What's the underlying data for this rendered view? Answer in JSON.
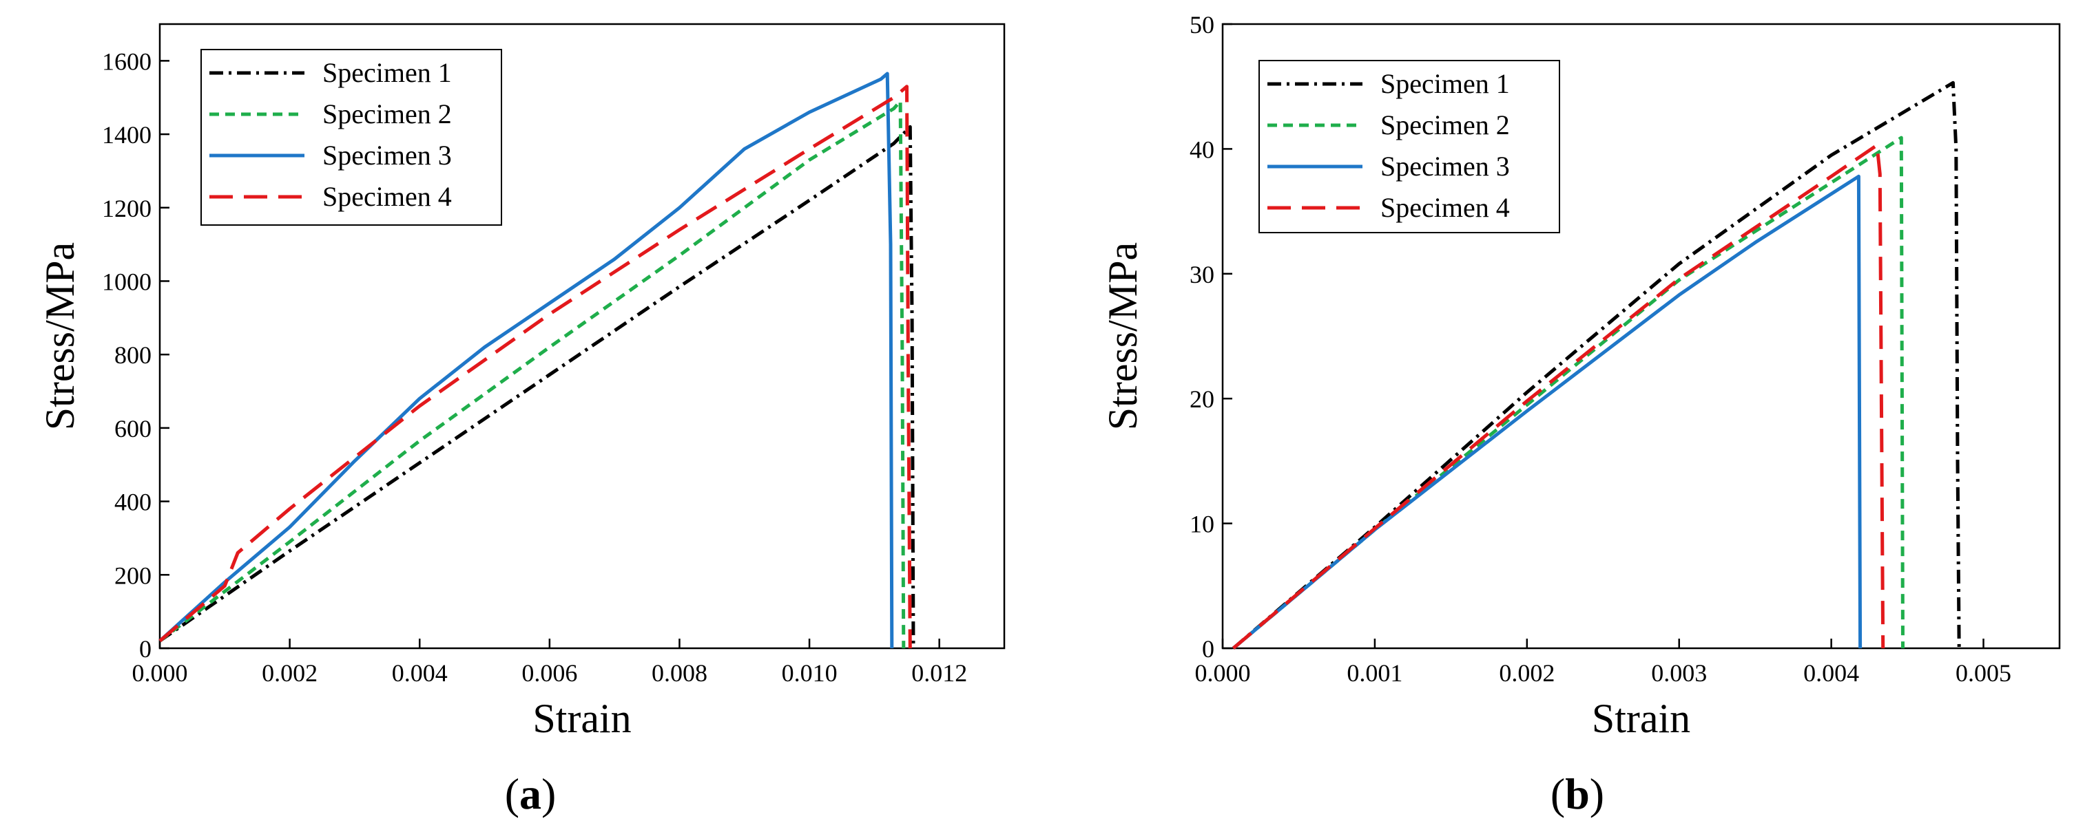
{
  "chart_data": [
    {
      "panel": "a",
      "type": "line",
      "xlabel": "Strain",
      "ylabel": "Stress/MPa",
      "xlim": [
        0,
        0.013
      ],
      "ylim": [
        0,
        1700
      ],
      "xticks": [
        0,
        0.002,
        0.004,
        0.006,
        0.008,
        0.01,
        0.012
      ],
      "xtick_labels": [
        "0.000",
        "0.002",
        "0.004",
        "0.006",
        "0.008",
        "0.010",
        "0.012"
      ],
      "yticks": [
        0,
        200,
        400,
        600,
        800,
        1000,
        1200,
        1400,
        1600
      ],
      "ytick_labels": [
        "0",
        "200",
        "400",
        "600",
        "800",
        "1000",
        "1200",
        "1400",
        "1600"
      ],
      "legend_position": "top-left",
      "series": [
        {
          "name": "Specimen 1",
          "style": "dashdot",
          "color": "#000000",
          "x": [
            0,
            0.002,
            0.004,
            0.006,
            0.008,
            0.01,
            0.0113,
            0.01155,
            0.01158,
            0.0116
          ],
          "y": [
            20,
            265,
            505,
            745,
            985,
            1220,
            1375,
            1420,
            900,
            0
          ]
        },
        {
          "name": "Specimen 2",
          "style": "dashed",
          "color": "#1fae4b",
          "x": [
            0,
            0.002,
            0.004,
            0.006,
            0.008,
            0.01,
            0.0113,
            0.0114,
            0.01143,
            0.01145
          ],
          "y": [
            20,
            290,
            565,
            820,
            1070,
            1330,
            1470,
            1490,
            800,
            0
          ]
        },
        {
          "name": "Specimen 3",
          "style": "solid",
          "color": "#1f77c8",
          "x": [
            0,
            0.001,
            0.002,
            0.003,
            0.004,
            0.005,
            0.006,
            0.007,
            0.008,
            0.009,
            0.01,
            0.0111,
            0.0112,
            0.01125,
            0.01127
          ],
          "y": [
            20,
            180,
            330,
            510,
            680,
            820,
            940,
            1060,
            1200,
            1360,
            1460,
            1550,
            1565,
            1100,
            0
          ]
        },
        {
          "name": "Specimen 4",
          "style": "longdash",
          "color": "#e3191c",
          "x": [
            0,
            0.001,
            0.0012,
            0.002,
            0.004,
            0.006,
            0.008,
            0.01,
            0.0113,
            0.0115,
            0.01152,
            0.01155
          ],
          "y": [
            20,
            170,
            260,
            380,
            660,
            910,
            1140,
            1360,
            1500,
            1530,
            800,
            0
          ]
        }
      ]
    },
    {
      "panel": "b",
      "type": "line",
      "xlabel": "Strain",
      "ylabel": "Stress/MPa",
      "xlim": [
        0,
        0.0055
      ],
      "ylim": [
        0,
        50
      ],
      "xticks": [
        0,
        0.001,
        0.002,
        0.003,
        0.004,
        0.005
      ],
      "xtick_labels": [
        "0.000",
        "0.001",
        "0.002",
        "0.003",
        "0.004",
        "0.005"
      ],
      "yticks": [
        0,
        10,
        20,
        30,
        40,
        50
      ],
      "ytick_labels": [
        "0",
        "10",
        "20",
        "30",
        "40",
        "50"
      ],
      "legend_position": "top-left",
      "series": [
        {
          "name": "Specimen 1",
          "style": "dashdot",
          "color": "#000000",
          "x": [
            7e-05,
            0.001,
            0.002,
            0.003,
            0.004,
            0.0048,
            0.00482,
            0.00483,
            0.00484
          ],
          "y": [
            0,
            9.7,
            20.5,
            30.8,
            39.5,
            45.3,
            40,
            15,
            0
          ]
        },
        {
          "name": "Specimen 2",
          "style": "dashed",
          "color": "#1fae4b",
          "x": [
            7e-05,
            0.001,
            0.002,
            0.003,
            0.004,
            0.00446,
            0.00447
          ],
          "y": [
            0,
            9.5,
            19.5,
            29.5,
            37.3,
            40.9,
            0
          ]
        },
        {
          "name": "Specimen 3",
          "style": "solid",
          "color": "#1f77c8",
          "x": [
            7e-05,
            0.001,
            0.002,
            0.003,
            0.0035,
            0.00418,
            0.00419
          ],
          "y": [
            0,
            9.5,
            19.0,
            28.3,
            32.5,
            37.8,
            0
          ]
        },
        {
          "name": "Specimen 4",
          "style": "longdash",
          "color": "#e3191c",
          "x": [
            7e-05,
            0.001,
            0.002,
            0.003,
            0.004,
            0.0043,
            0.00432,
            0.00434
          ],
          "y": [
            0,
            9.6,
            19.8,
            29.6,
            37.8,
            40.3,
            38,
            0
          ]
        }
      ]
    }
  ],
  "panel_labels": [
    "(a)",
    "(b)"
  ]
}
